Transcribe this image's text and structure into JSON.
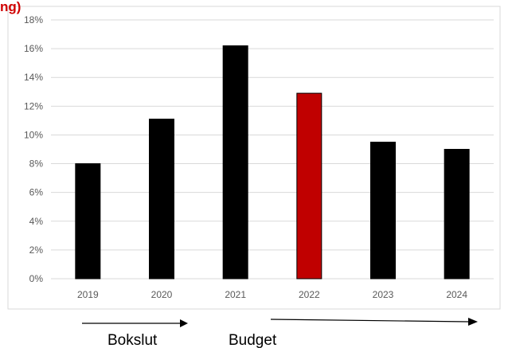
{
  "title_fragment": "ng)",
  "annotations": {
    "left_label": "Bokslut",
    "right_label": "Budget"
  },
  "colors": {
    "bar_default": "#000000",
    "bar_highlight": "#c00000",
    "grid": "#d9d9d9",
    "frame": "#d9d9d9",
    "title": "#d00000"
  },
  "chart_data": {
    "type": "bar",
    "categories": [
      "2019",
      "2020",
      "2021",
      "2022",
      "2023",
      "2024"
    ],
    "values": [
      8.0,
      11.1,
      16.2,
      12.9,
      9.5,
      9.0
    ],
    "highlight_index": 3,
    "ylim": [
      0,
      18
    ],
    "y_ticks": [
      0,
      2,
      4,
      6,
      8,
      10,
      12,
      14,
      16,
      18
    ],
    "y_tick_labels": [
      "0%",
      "2%",
      "4%",
      "6%",
      "8%",
      "10%",
      "12%",
      "14%",
      "16%",
      "18%"
    ],
    "grid": true,
    "legend": "none",
    "xlabel": "",
    "ylabel": ""
  }
}
